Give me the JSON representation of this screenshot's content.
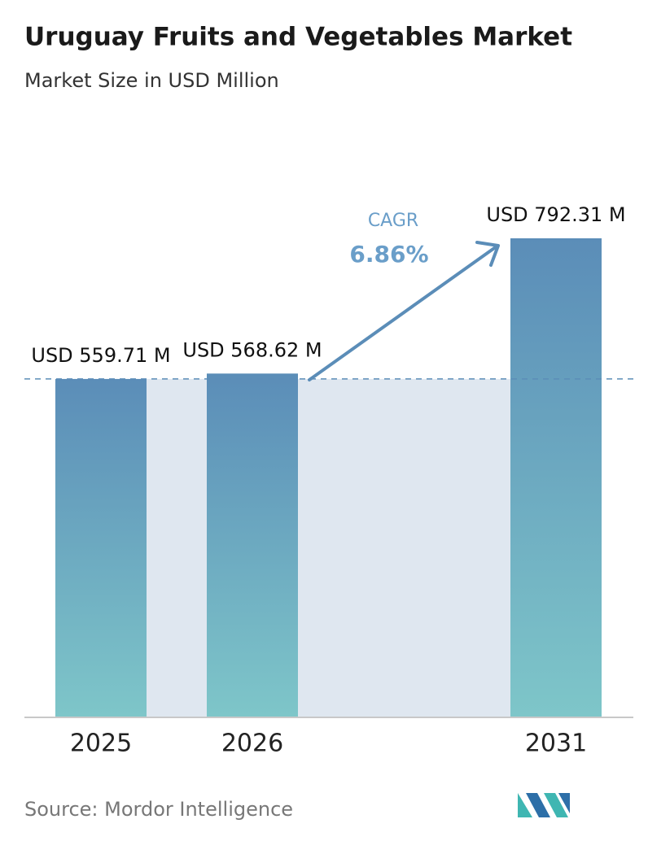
{
  "chart_data": {
    "type": "bar",
    "title": "Uruguay Fruits and Vegetables Market",
    "subtitle": "Market Size in USD Million",
    "categories": [
      "2025",
      "2026",
      "2031"
    ],
    "values": [
      559.71,
      568.62,
      792.31
    ],
    "value_labels": [
      "USD 559.71 M",
      "USD 568.62 M",
      "USD 792.31 M"
    ],
    "color": [
      "#5b8db8",
      "#7ec6c9"
    ],
    "cagr_label": "CAGR",
    "cagr_value": "6.86%",
    "source": "Source: Mordor Intelligence"
  }
}
